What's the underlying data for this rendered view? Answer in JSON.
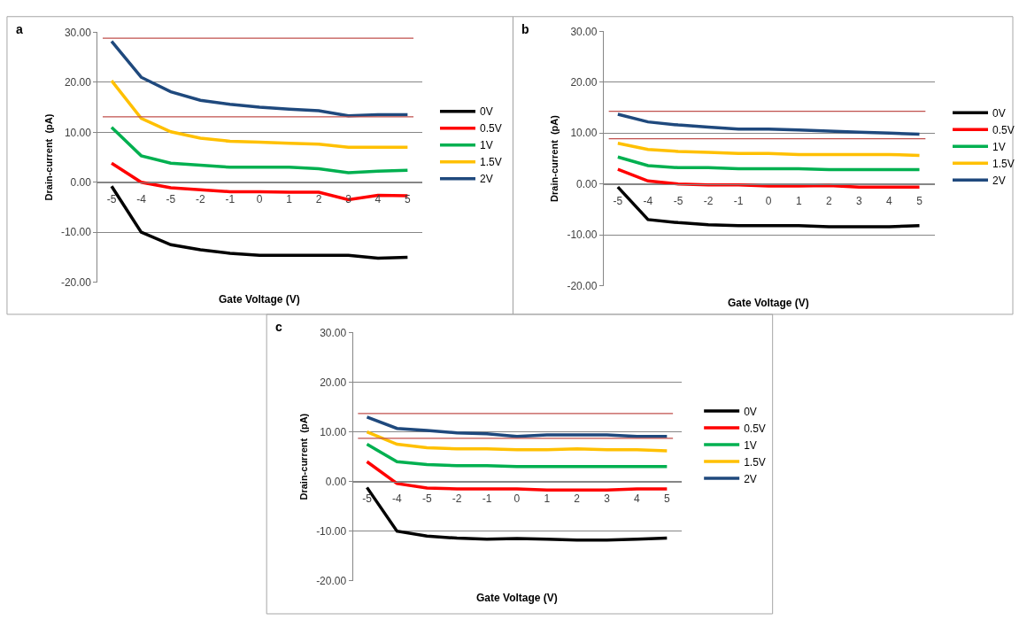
{
  "chart_data": [
    {
      "type": "line",
      "title": "a",
      "xlabel": "Gate Voltage (V)",
      "ylabel": "Drain-current  (pA)",
      "categories": [
        "-5",
        "-4",
        "-5",
        "-2",
        "-1",
        "0",
        "1",
        "2",
        "3",
        "4",
        "5"
      ],
      "ylim": [
        -20,
        30
      ],
      "yticks": [
        {
          "value": -20,
          "label": "-20.00"
        },
        {
          "value": -10,
          "label": "-10.00"
        },
        {
          "value": 0,
          "label": "0.00"
        },
        {
          "value": 10,
          "label": "10.00"
        },
        {
          "value": 20,
          "label": "20.00"
        },
        {
          "value": 30,
          "label": "30.00"
        }
      ],
      "grid": "y",
      "legend": "right",
      "marker": "none",
      "line_style": "solid",
      "ref_lines": [
        {
          "axis": "y",
          "value": 28.8,
          "color": "#c0504d"
        },
        {
          "axis": "y",
          "value": 13.1,
          "color": "#c0504d"
        }
      ],
      "series": [
        {
          "name": "0V",
          "color": "#000000",
          "values": [
            -0.8,
            -10,
            -12.5,
            -13.5,
            -14.2,
            -14.6,
            -14.6,
            -14.6,
            -14.6,
            -15.2,
            -15
          ]
        },
        {
          "name": "0.5V",
          "color": "#ff0000",
          "values": [
            3.8,
            0,
            -1.1,
            -1.5,
            -1.9,
            -1.9,
            -2,
            -2,
            -3.5,
            -2.6,
            -2.7
          ]
        },
        {
          "name": "1V",
          "color": "#00b050",
          "values": [
            11,
            5.3,
            3.8,
            3.4,
            3,
            3,
            3,
            2.7,
            1.9,
            2.2,
            2.4
          ]
        },
        {
          "name": "1.5V",
          "color": "#ffc000",
          "values": [
            20.3,
            12.8,
            10.1,
            8.8,
            8.2,
            8,
            7.8,
            7.6,
            7,
            7,
            7
          ]
        },
        {
          "name": "2V",
          "color": "#1f497d",
          "values": [
            28.2,
            21,
            18.1,
            16.4,
            15.6,
            15,
            14.6,
            14.3,
            13.3,
            13.5,
            13.5
          ]
        }
      ]
    },
    {
      "type": "line",
      "title": "b",
      "xlabel": "Gate Voltage (V)",
      "ylabel": "Drain-current  (pA)",
      "categories": [
        "-5",
        "-4",
        "-5",
        "-2",
        "-1",
        "0",
        "1",
        "2",
        "3",
        "4",
        "5"
      ],
      "ylim": [
        -20,
        30
      ],
      "yticks": [
        {
          "value": -20,
          "label": "-20.00"
        },
        {
          "value": -10,
          "label": "-10.00"
        },
        {
          "value": 0,
          "label": "0.00"
        },
        {
          "value": 10,
          "label": "10.00"
        },
        {
          "value": 20,
          "label": "20.00"
        },
        {
          "value": 30,
          "label": "30.00"
        }
      ],
      "grid": "y",
      "legend": "right",
      "marker": "none",
      "line_style": "solid",
      "ref_lines": [
        {
          "axis": "y",
          "value": 14.3,
          "color": "#c0504d"
        },
        {
          "axis": "y",
          "value": 8.9,
          "color": "#c0504d"
        }
      ],
      "series": [
        {
          "name": "0V",
          "color": "#000000",
          "values": [
            -0.6,
            -7,
            -7.6,
            -8,
            -8.2,
            -8.2,
            -8.2,
            -8.4,
            -8.4,
            -8.4,
            -8.2
          ]
        },
        {
          "name": "0.5V",
          "color": "#ff0000",
          "values": [
            2.9,
            0.6,
            0,
            -0.2,
            -0.2,
            -0.4,
            -0.4,
            -0.3,
            -0.6,
            -0.6,
            -0.6
          ]
        },
        {
          "name": "1V",
          "color": "#00b050",
          "values": [
            5.3,
            3.6,
            3.2,
            3.2,
            3,
            3,
            3,
            2.8,
            2.8,
            2.8,
            2.8
          ]
        },
        {
          "name": "1.5V",
          "color": "#ffc000",
          "values": [
            8,
            6.8,
            6.4,
            6.2,
            6,
            6,
            5.8,
            5.8,
            5.8,
            5.8,
            5.6
          ]
        },
        {
          "name": "2V",
          "color": "#1f497d",
          "values": [
            13.7,
            12.2,
            11.6,
            11.2,
            10.8,
            10.8,
            10.6,
            10.4,
            10.2,
            10,
            9.8
          ]
        }
      ]
    },
    {
      "type": "line",
      "title": "c",
      "xlabel": "Gate Voltage (V)",
      "ylabel": "Drain-current  (pA)",
      "categories": [
        "-5",
        "-4",
        "-5",
        "-2",
        "-1",
        "0",
        "1",
        "2",
        "3",
        "4",
        "5"
      ],
      "ylim": [
        -20,
        30
      ],
      "yticks": [
        {
          "value": -20,
          "label": "-20.00"
        },
        {
          "value": -10,
          "label": "-10.00"
        },
        {
          "value": 0,
          "label": "0.00"
        },
        {
          "value": 10,
          "label": "10.00"
        },
        {
          "value": 20,
          "label": "20.00"
        },
        {
          "value": 30,
          "label": "30.00"
        }
      ],
      "grid": "y",
      "legend": "right",
      "marker": "none",
      "line_style": "solid",
      "ref_lines": [
        {
          "axis": "y",
          "value": 13.7,
          "color": "#c0504d"
        },
        {
          "axis": "y",
          "value": 8.7,
          "color": "#c0504d"
        }
      ],
      "series": [
        {
          "name": "0V",
          "color": "#000000",
          "values": [
            -1.2,
            -10,
            -11,
            -11.4,
            -11.6,
            -11.5,
            -11.6,
            -11.8,
            -11.8,
            -11.6,
            -11.4
          ]
        },
        {
          "name": "0.5V",
          "color": "#ff0000",
          "values": [
            4,
            -0.4,
            -1.3,
            -1.5,
            -1.5,
            -1.5,
            -1.7,
            -1.7,
            -1.7,
            -1.5,
            -1.5
          ]
        },
        {
          "name": "1V",
          "color": "#00b050",
          "values": [
            7.5,
            4,
            3.4,
            3.2,
            3.2,
            3,
            3,
            3,
            3,
            3,
            3
          ]
        },
        {
          "name": "1.5V",
          "color": "#ffc000",
          "values": [
            10,
            7.5,
            6.8,
            6.6,
            6.6,
            6.4,
            6.4,
            6.6,
            6.4,
            6.4,
            6.2
          ]
        },
        {
          "name": "2V",
          "color": "#1f497d",
          "values": [
            13,
            10.7,
            10.3,
            9.8,
            9.6,
            9.1,
            9.4,
            9.4,
            9.4,
            9.1,
            9.1
          ]
        }
      ]
    }
  ]
}
